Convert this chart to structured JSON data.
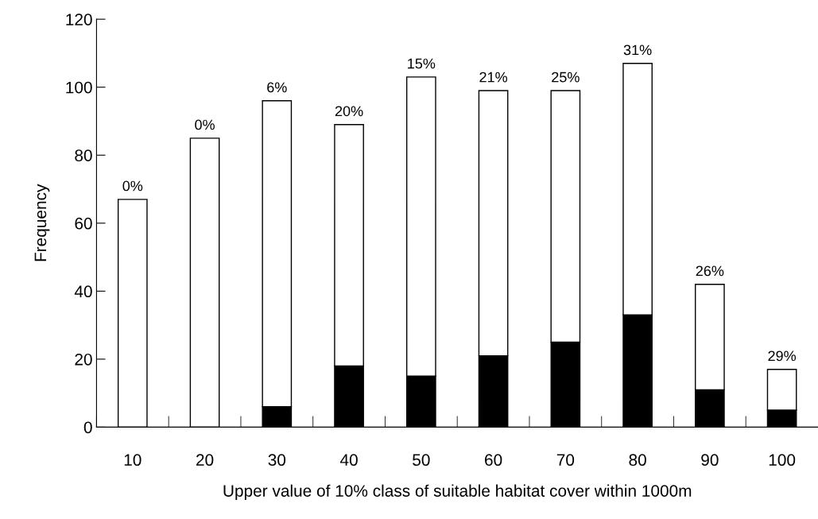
{
  "chart_data": {
    "type": "bar",
    "stacked": true,
    "xlabel": "Upper value of 10% class of suitable habitat cover within 1000m",
    "ylabel": "Frequency",
    "categories": [
      "10",
      "20",
      "30",
      "40",
      "50",
      "60",
      "70",
      "80",
      "90",
      "100"
    ],
    "series": [
      {
        "color": "#000000",
        "values": [
          0,
          0,
          6,
          18,
          15,
          21,
          25,
          33,
          11,
          5
        ]
      },
      {
        "color": "#ffffff",
        "values": [
          67,
          85,
          90,
          71,
          88,
          78,
          74,
          74,
          31,
          12
        ]
      }
    ],
    "ylim": [
      0,
      120
    ],
    "yticks": [
      0,
      20,
      40,
      60,
      80,
      100,
      120
    ],
    "grid": false,
    "legend": false,
    "annotations": [
      {
        "text": "0%",
        "x": "10",
        "y": 67
      },
      {
        "text": "0%",
        "x": "20",
        "y": 85
      },
      {
        "text": "6%",
        "x": "30",
        "y": 96
      },
      {
        "text": "20%",
        "x": "40",
        "y": 89
      },
      {
        "text": "15%",
        "x": "50",
        "y": 103
      },
      {
        "text": "21%",
        "x": "60",
        "y": 99
      },
      {
        "text": "25%",
        "x": "70",
        "y": 99
      },
      {
        "text": "31%",
        "x": "80",
        "y": 107
      },
      {
        "text": "26%",
        "x": "90",
        "y": 42
      },
      {
        "text": "29%",
        "x": "100",
        "y": 17
      }
    ]
  }
}
